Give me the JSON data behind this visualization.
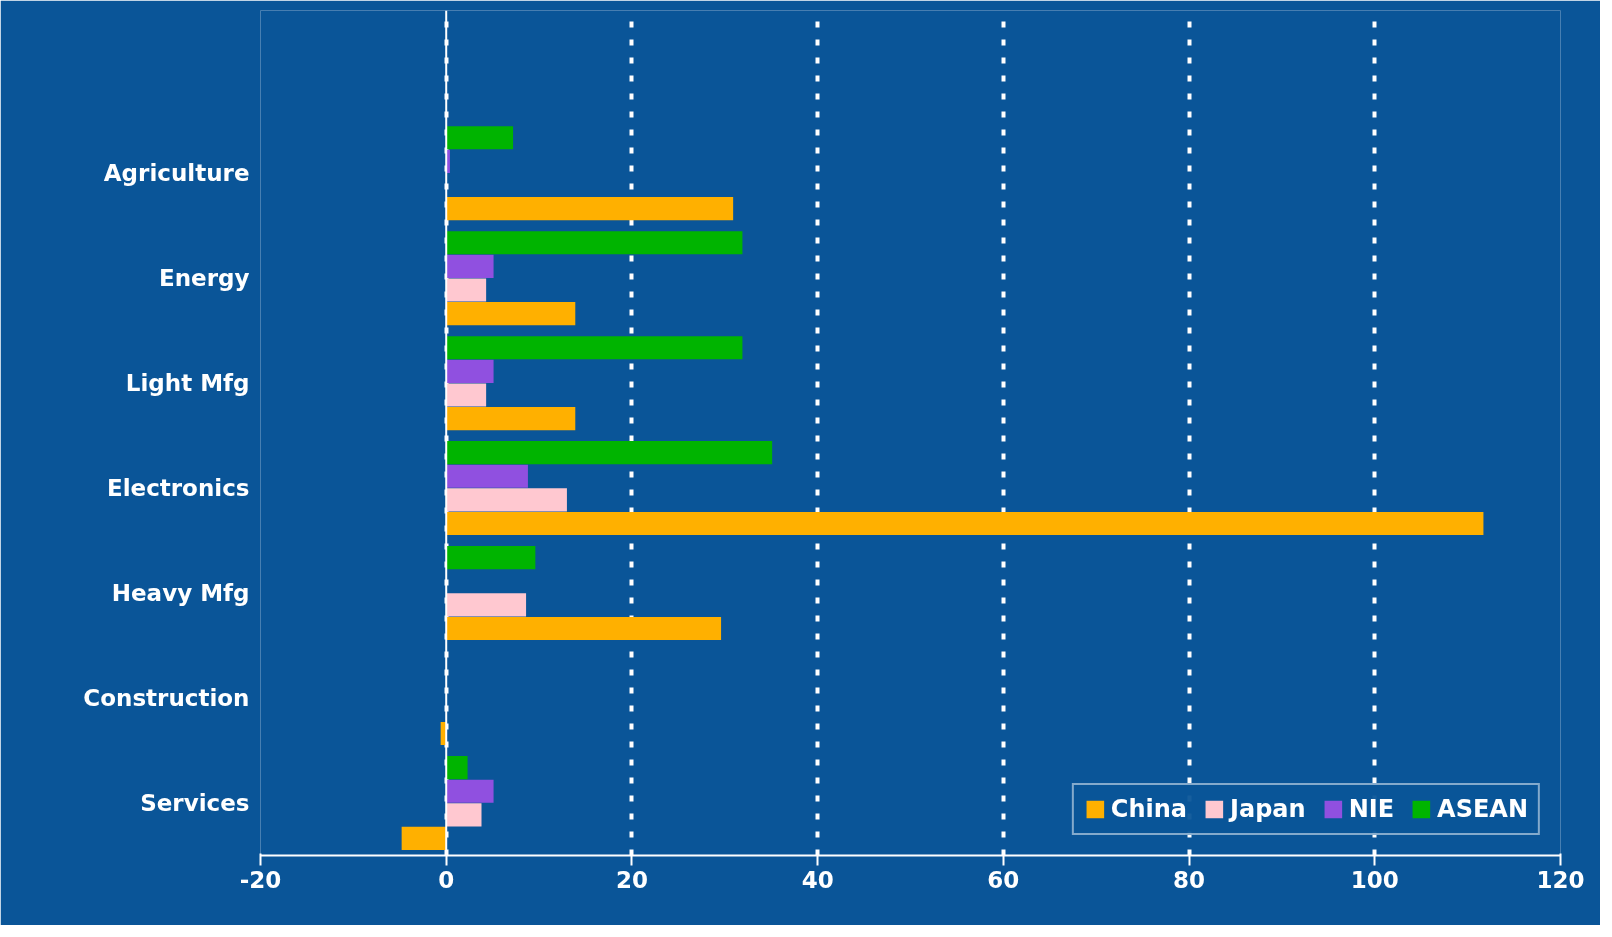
{
  "chart_data": {
    "type": "bar",
    "orientation": "horizontal",
    "categories": [
      "Agriculture",
      "Energy",
      "Light Mfg",
      "Electronics",
      "Heavy Mfg",
      "Construction",
      "Services"
    ],
    "series": [
      {
        "name": "China",
        "color": "#ffb000",
        "values": [
          30.9,
          13.9,
          13.9,
          111.7,
          29.6,
          -0.6,
          -4.8
        ]
      },
      {
        "name": "Japan",
        "color": "#ffc8d0",
        "values": [
          0,
          4.3,
          4.3,
          13.0,
          8.6,
          0,
          3.8
        ]
      },
      {
        "name": "NIE",
        "color": "#9050e0",
        "values": [
          0.4,
          5.1,
          5.1,
          8.8,
          0,
          0,
          5.1
        ]
      },
      {
        "name": "ASEAN",
        "color": "#00b400",
        "values": [
          7.2,
          31.9,
          31.9,
          35.1,
          9.6,
          0,
          2.3
        ]
      }
    ],
    "xlim": [
      -20,
      120
    ],
    "xticks": [
      -20,
      0,
      20,
      40,
      60,
      80,
      100,
      120
    ],
    "grid": "x",
    "legend": "bottom right",
    "ref_lines": [
      {
        "axis": "x",
        "value": 0,
        "label": null,
        "color": "#ffffff"
      }
    ]
  }
}
